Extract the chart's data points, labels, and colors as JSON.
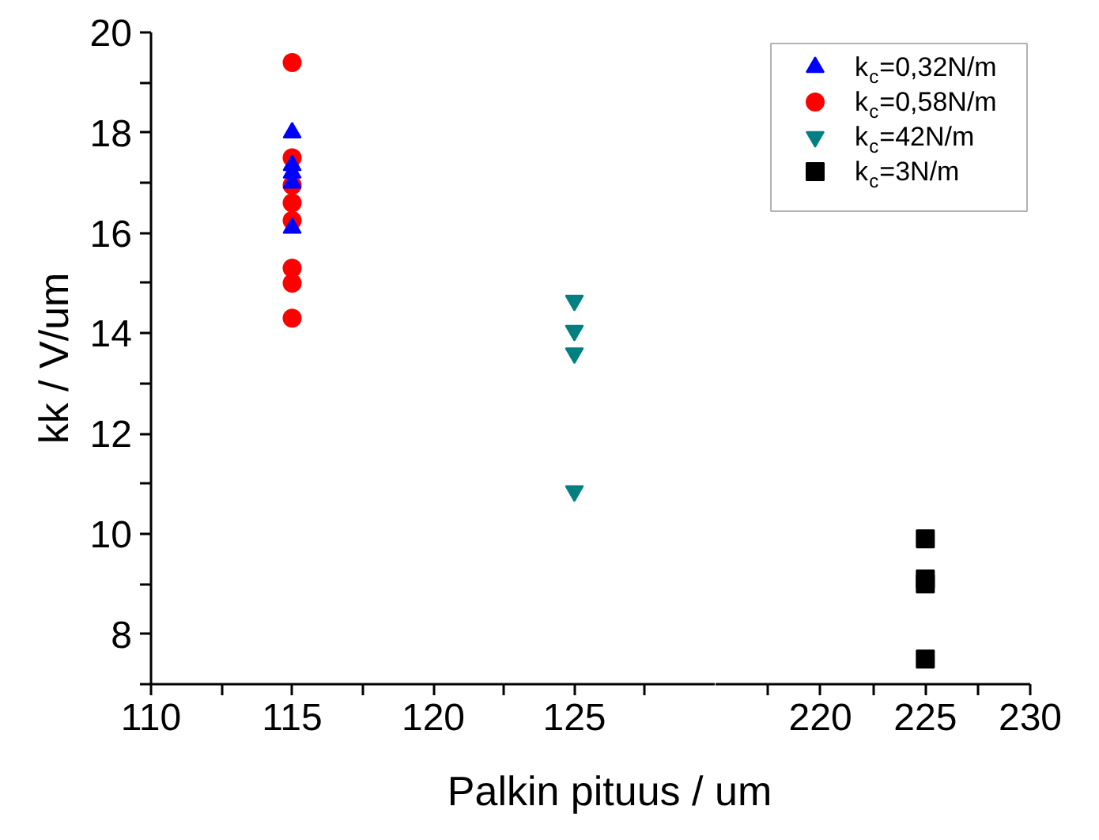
{
  "chart_data": [
    {
      "type": "scatter",
      "xlabel": "Palkin pituus / um",
      "ylabel": "kk / V/um",
      "xlim": [
        110,
        130
      ],
      "ylim": [
        7,
        20
      ],
      "xticks": [
        110,
        {
          "value": 112.5,
          "label": null
        },
        115,
        {
          "value": 117.5,
          "label": null
        },
        120,
        {
          "value": 122.5,
          "label": null
        },
        125,
        {
          "value": 127.5,
          "label": null
        }
      ],
      "yticks": [
        {
          "value": 7,
          "label": null
        },
        8,
        {
          "value": 9,
          "label": null
        },
        10,
        {
          "value": 11,
          "label": null
        },
        12,
        {
          "value": 13,
          "label": null
        },
        14,
        {
          "value": 15,
          "label": null
        },
        16,
        {
          "value": 17,
          "label": null
        },
        18,
        {
          "value": 19,
          "label": null
        },
        20
      ],
      "grid": false,
      "legend": "top right",
      "series": [
        {
          "name": "k$_{c}$=0,32N/m",
          "color": "#0000ff",
          "marker": "triangle",
          "x": [
            115,
            115,
            115,
            115,
            115
          ],
          "values": [
            18.0,
            17.35,
            17.2,
            17.0,
            16.1
          ]
        },
        {
          "name": "k$_{c}$=0,58N/m",
          "color": "#ff0000",
          "marker": "circle",
          "x": [
            115,
            115,
            115,
            115,
            115,
            115,
            115,
            115
          ],
          "values": [
            19.4,
            17.5,
            16.95,
            16.6,
            16.25,
            15.3,
            15.0,
            14.3
          ]
        },
        {
          "name": "k$_{c}$=42N/m",
          "color": "#008080",
          "x": [
            125,
            125,
            125,
            125
          ],
          "values": [
            14.65,
            14.05,
            13.6,
            10.85
          ]
        }
      ]
    },
    {
      "type": "scatter",
      "xlim": [
        215,
        230
      ],
      "ylim": [
        7,
        20
      ],
      "tick_labels": "x",
      "xticks": [
        {
          "value": 217.5,
          "label": null
        },
        220,
        {
          "value": 222.5,
          "label": null
        },
        225,
        {
          "value": 227.5,
          "label": null
        },
        230
      ],
      "grid": false,
      "legend": "top right",
      "series": [
        {
          "name": "k$_{c}$=3N/m",
          "color": "#000000",
          "marker": "square",
          "x": [
            225,
            225,
            225,
            225
          ],
          "values": [
            9.9,
            9.1,
            9.0,
            7.5
          ]
        }
      ]
    }
  ]
}
